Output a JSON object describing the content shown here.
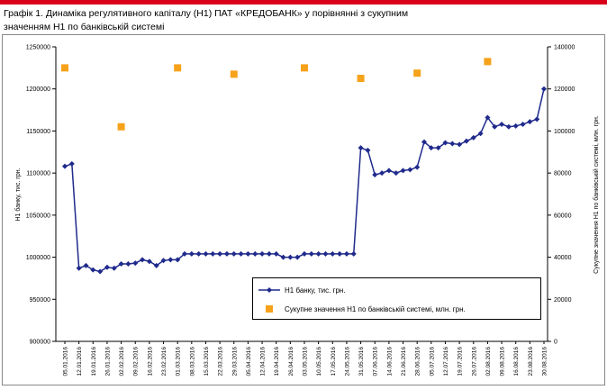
{
  "chart_data": {
    "type": "line",
    "title": [
      "Графік 1. Динаміка регулятивного капіталу (Н1) ПАТ «КРЕДОБАНК»  у порівнянні з сукупним",
      "значенням Н1 по банківській системі"
    ],
    "ylabel": "Н1 банку, тис. грн.",
    "y2label": "Сукупне значення Н1 по банківській системі, млн. грн.",
    "categories": [
      "05.01.2016",
      null,
      "12.01.2016",
      null,
      "19.01.2016",
      null,
      "26.01.2016",
      null,
      "02.02.2016",
      null,
      "09.02.2016",
      null,
      "16.02.2016",
      null,
      "23.02.2016",
      null,
      "01.03.2016",
      null,
      "08.03.2016",
      null,
      "15.03.2016",
      null,
      "22.03.2016",
      null,
      "29.03.2016",
      null,
      "05.04.2016",
      null,
      "12.04.2016",
      null,
      "19.04.2016",
      null,
      "26.04.2016",
      null,
      "03.05.2016",
      null,
      "10.05.2016",
      null,
      "17.05.2016",
      null,
      "24.05.2016",
      null,
      "31.05.2016",
      null,
      "07.06.2016",
      null,
      "14.06.2016",
      null,
      "21.06.2016",
      null,
      "28.06.2016",
      null,
      "05.07.2016",
      null,
      "12.07.2016",
      null,
      "19.07.2016",
      null,
      "26.07.2016",
      null,
      "02.08.2016",
      null,
      "09.08.2016",
      null,
      "16.08.2016",
      null,
      "23.08.2016",
      null,
      "30.08.2016"
    ],
    "series": [
      {
        "name": "Н1 банку, тис. грн.",
        "color": "#1f2a8c",
        "marker": "diamond",
        "line": true,
        "values": [
          1108000,
          1111000,
          987000,
          990000,
          985000,
          983000,
          988000,
          987000,
          992000,
          992000,
          993000,
          997000,
          995000,
          990000,
          996000,
          997000,
          997000,
          1004000,
          1004000,
          1004000,
          1004000,
          1004000,
          1004000,
          1004000,
          1004000,
          1004000,
          1004000,
          1004000,
          1004000,
          1004000,
          1004000,
          1000000,
          1000000,
          1000000,
          1004000,
          1004000,
          1004000,
          1004000,
          1004000,
          1004000,
          1004000,
          1004000,
          1130000,
          1127000,
          1098000,
          1100000,
          1103000,
          1100000,
          1103000,
          1104000,
          1107000,
          1137000,
          1130000,
          1130000,
          1136000,
          1135000,
          1134000,
          1138000,
          1142000,
          1147000,
          1166000,
          1155000,
          1158000,
          1155000,
          1156000,
          1158000,
          1161000,
          1164000,
          1200000
        ]
      },
      {
        "name": "Сукупне значення Н1 по банківській системі, млн. грн.",
        "color": "#f7a21b",
        "marker": "square",
        "line": false,
        "axis": "y2",
        "values": [
          130000,
          null,
          null,
          null,
          null,
          null,
          null,
          null,
          102000,
          null,
          null,
          null,
          null,
          null,
          null,
          null,
          130000,
          null,
          null,
          null,
          null,
          null,
          null,
          null,
          127000,
          null,
          null,
          null,
          null,
          null,
          null,
          null,
          null,
          null,
          130000,
          null,
          null,
          null,
          null,
          null,
          null,
          null,
          125000,
          null,
          null,
          null,
          null,
          null,
          null,
          null,
          127500,
          null,
          null,
          null,
          null,
          null,
          null,
          null,
          null,
          null,
          133000,
          null,
          null,
          null,
          null,
          null,
          null,
          null,
          null
        ]
      }
    ],
    "ylim": [
      900000,
      1250000
    ],
    "yticks": [
      900000,
      950000,
      1000000,
      1050000,
      1100000,
      1150000,
      1200000,
      1250000
    ],
    "y2lim": [
      0,
      140000
    ],
    "y2ticks": [
      0,
      20000,
      40000,
      60000,
      80000,
      100000,
      120000,
      140000
    ],
    "grid": false
  }
}
